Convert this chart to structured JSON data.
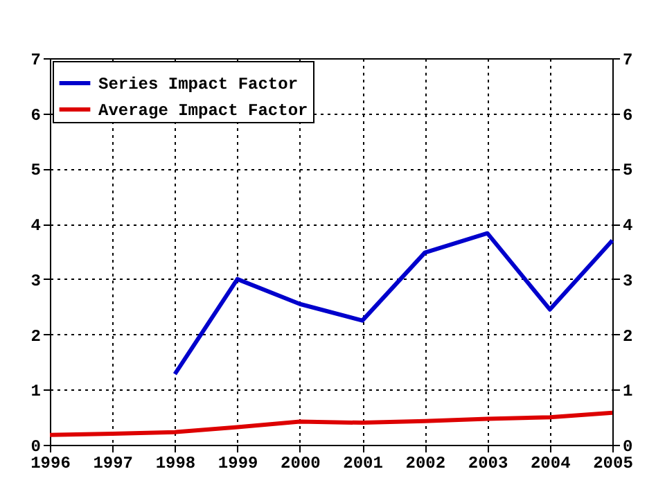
{
  "chart_data": {
    "type": "line",
    "x": [
      1996,
      1997,
      1998,
      1999,
      2000,
      2001,
      2002,
      2003,
      2004,
      2005
    ],
    "series": [
      {
        "name": "Series Impact Factor",
        "color": "#0000cc",
        "values": [
          null,
          null,
          1.28,
          3.0,
          2.55,
          2.25,
          3.48,
          3.83,
          2.45,
          3.7
        ]
      },
      {
        "name": "Average Impact Factor",
        "color": "#dd0000",
        "values": [
          0.18,
          0.2,
          0.23,
          0.32,
          0.42,
          0.4,
          0.43,
          0.47,
          0.5,
          0.58
        ]
      }
    ],
    "xlim": [
      1996,
      2005
    ],
    "xticks": [
      1996,
      1997,
      1998,
      1999,
      2000,
      2001,
      2002,
      2003,
      2004,
      2005
    ],
    "ylim": [
      0,
      7
    ],
    "yticks": [
      0,
      1,
      2,
      3,
      4,
      5,
      6,
      7
    ],
    "y2lim": [
      0,
      7
    ],
    "y2ticks": [
      0,
      1,
      2,
      3,
      4,
      5,
      6,
      7
    ],
    "grid": true,
    "legend": "top left",
    "marker": "none",
    "line_style": "solid"
  }
}
